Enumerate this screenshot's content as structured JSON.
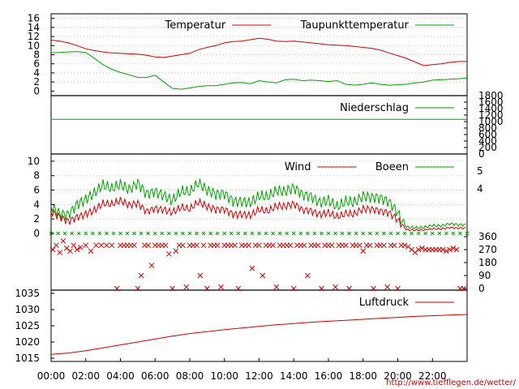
{
  "source_url": "http://www.tiefflegen.de/wetter/",
  "colors": {
    "red": "#cc0000",
    "green": "#00a000",
    "frame": "#000000"
  },
  "chart_data": [
    {
      "type": "line",
      "panel": "temperature",
      "ylim": [
        -1,
        17
      ],
      "yticks": [
        "0",
        "2",
        "4",
        "6",
        "8",
        "10",
        "12",
        "14",
        "16"
      ],
      "grid": true,
      "legend_position": "top-right",
      "x_unit": "hours",
      "series": [
        {
          "name": "Temperatur",
          "color": "#cc0000",
          "x": [
            0,
            0.5,
            1,
            1.5,
            2,
            2.5,
            3,
            3.5,
            4,
            4.5,
            5,
            5.5,
            6,
            6.5,
            7,
            7.5,
            8,
            8.5,
            9,
            9.5,
            10,
            10.5,
            11,
            11.5,
            12,
            12.5,
            13,
            13.5,
            14,
            14.5,
            15,
            15.5,
            16,
            16.5,
            17,
            17.5,
            18,
            18.5,
            19,
            19.5,
            20,
            20.5,
            21,
            21.5,
            22,
            22.5,
            23,
            23.5,
            24
          ],
          "values": [
            11.2,
            11.0,
            10.6,
            10.0,
            9.3,
            8.9,
            8.6,
            8.4,
            8.3,
            8.2,
            8.1,
            7.9,
            7.5,
            7.4,
            7.7,
            8.0,
            8.3,
            9.1,
            9.6,
            10.0,
            10.6,
            10.9,
            11.0,
            11.3,
            11.6,
            11.4,
            11.0,
            10.9,
            11.0,
            10.8,
            10.6,
            10.4,
            10.2,
            10.1,
            10.0,
            9.8,
            9.6,
            9.4,
            9.0,
            8.4,
            7.8,
            7.2,
            6.4,
            5.6,
            5.8,
            6.0,
            6.3,
            6.5,
            6.5
          ]
        },
        {
          "name": "Taupunkttemperatur",
          "color": "#00a000",
          "x": [
            0,
            0.5,
            1,
            1.5,
            2,
            2.5,
            3,
            3.5,
            4,
            4.5,
            5,
            5.5,
            6,
            6.5,
            7,
            7.5,
            8,
            8.5,
            9,
            9.5,
            10,
            10.5,
            11,
            11.5,
            12,
            12.5,
            13,
            13.5,
            14,
            14.5,
            15,
            15.5,
            16,
            16.5,
            17,
            17.5,
            18,
            18.5,
            19,
            19.5,
            20,
            20.5,
            21,
            21.5,
            22,
            22.5,
            23,
            23.5,
            24
          ],
          "values": [
            8.4,
            8.5,
            8.6,
            8.7,
            8.5,
            7.2,
            5.8,
            4.8,
            4.1,
            3.6,
            3.0,
            3.0,
            3.5,
            2.0,
            0.6,
            0.4,
            0.7,
            1.0,
            1.2,
            1.2,
            1.5,
            1.8,
            1.9,
            1.6,
            2.3,
            2.0,
            1.8,
            2.5,
            2.6,
            2.3,
            2.4,
            2.3,
            2.1,
            2.3,
            1.5,
            1.3,
            1.5,
            1.8,
            1.5,
            1.3,
            1.4,
            1.5,
            1.8,
            2.0,
            2.4,
            2.5,
            2.6,
            2.7,
            2.9
          ]
        }
      ]
    },
    {
      "type": "line",
      "panel": "precipitation",
      "ylim": [
        0,
        1800
      ],
      "yticks_right": [
        "0",
        "200",
        "400",
        "600",
        "800",
        "1000",
        "1200",
        "1400",
        "1600",
        "1800"
      ],
      "legend_position": "top-right",
      "series": [
        {
          "name": "Niederschlag",
          "color": "#00a000",
          "x": [
            0,
            24
          ],
          "values": [
            1070,
            1070
          ]
        }
      ]
    },
    {
      "type": "line",
      "panel": "wind",
      "ylim": [
        0,
        11
      ],
      "yticks": [
        "0",
        "2",
        "4",
        "6",
        "8",
        "10"
      ],
      "yticks_right": [
        "4",
        "5"
      ],
      "grid": true,
      "legend_position": "top-right",
      "series": [
        {
          "name": "Wind",
          "color": "#cc0000",
          "x": [
            0,
            0.5,
            1,
            1.5,
            2,
            2.5,
            3,
            3.5,
            4,
            4.5,
            5,
            5.5,
            6,
            6.5,
            7,
            7.5,
            8,
            8.5,
            9,
            9.5,
            10,
            10.5,
            11,
            11.5,
            12,
            12.5,
            13,
            13.5,
            14,
            14.5,
            15,
            15.5,
            16,
            16.5,
            17,
            17.5,
            18,
            18.5,
            19,
            19.5,
            20,
            20.5,
            21,
            21.5,
            22,
            22.5,
            23,
            23.5,
            24
          ],
          "values": [
            3.0,
            2.6,
            2.2,
            2.8,
            3.0,
            3.2,
            3.8,
            3.5,
            4.0,
            3.6,
            4.2,
            3.4,
            4.0,
            3.8,
            3.2,
            3.6,
            3.0,
            3.8,
            3.2,
            3.0,
            3.4,
            3.0,
            3.2,
            3.0,
            3.6,
            3.0,
            3.4,
            3.2,
            3.6,
            3.0,
            3.2,
            3.0,
            3.4,
            2.8,
            3.0,
            2.6,
            3.0,
            2.8,
            2.6,
            2.6,
            2.0,
            0.6,
            0.6,
            0.6,
            0.7,
            0.6,
            0.7,
            0.6,
            0.6
          ]
        },
        {
          "name": "Boeen",
          "color": "#00a000",
          "x": [
            0,
            0.5,
            1,
            1.5,
            2,
            2.5,
            3,
            3.5,
            4,
            4.5,
            5,
            5.5,
            6,
            6.5,
            7,
            7.5,
            8,
            8.5,
            9,
            9.5,
            10,
            10.5,
            11,
            11.5,
            12,
            12.5,
            13,
            13.5,
            14,
            14.5,
            15,
            15.5,
            16,
            16.5,
            17,
            17.5,
            18,
            18.5,
            19,
            19.5,
            20,
            20.5,
            21,
            21.5,
            22,
            22.5,
            23,
            23.5,
            24
          ],
          "values": [
            3.8,
            3.2,
            3.4,
            4.8,
            5.2,
            5.6,
            6.2,
            5.4,
            6.0,
            5.6,
            7.0,
            6.0,
            6.6,
            6.0,
            5.0,
            5.8,
            5.2,
            6.2,
            5.2,
            5.0,
            5.6,
            5.0,
            5.2,
            5.0,
            5.6,
            5.0,
            5.4,
            5.0,
            5.6,
            5.0,
            5.2,
            4.8,
            5.4,
            4.4,
            4.8,
            4.2,
            4.6,
            4.2,
            4.2,
            4.0,
            3.0,
            1.0,
            1.0,
            1.0,
            1.2,
            1.0,
            1.2,
            1.0,
            1.0
          ]
        }
      ]
    },
    {
      "type": "scatter",
      "panel": "wind_direction",
      "ylim": [
        0,
        360
      ],
      "yticks_right": [
        "0",
        "90",
        "180",
        "270",
        "360"
      ],
      "marker": "x",
      "color": "#cc0000",
      "points": [
        [
          0.1,
          270
        ],
        [
          0.3,
          300
        ],
        [
          0.5,
          250
        ],
        [
          0.7,
          330
        ],
        [
          0.9,
          280
        ],
        [
          1.1,
          260
        ],
        [
          1.3,
          300
        ],
        [
          1.5,
          270
        ],
        [
          1.7,
          285
        ],
        [
          2.0,
          300
        ],
        [
          2.3,
          260
        ],
        [
          2.6,
          300
        ],
        [
          2.9,
          300
        ],
        [
          3.2,
          300
        ],
        [
          3.5,
          300
        ],
        [
          3.8,
          0
        ],
        [
          4.0,
          300
        ],
        [
          4.2,
          300
        ],
        [
          4.4,
          300
        ],
        [
          4.6,
          300
        ],
        [
          4.8,
          300
        ],
        [
          5.0,
          0
        ],
        [
          5.2,
          90
        ],
        [
          5.4,
          300
        ],
        [
          5.6,
          300
        ],
        [
          5.8,
          160
        ],
        [
          6.0,
          300
        ],
        [
          6.2,
          300
        ],
        [
          6.4,
          300
        ],
        [
          6.6,
          300
        ],
        [
          6.8,
          240
        ],
        [
          7.0,
          0
        ],
        [
          7.2,
          260
        ],
        [
          7.4,
          300
        ],
        [
          7.6,
          300
        ],
        [
          7.8,
          10
        ],
        [
          8.0,
          300
        ],
        [
          8.2,
          300
        ],
        [
          8.4,
          300
        ],
        [
          8.6,
          90
        ],
        [
          8.8,
          300
        ],
        [
          9.0,
          0
        ],
        [
          9.2,
          300
        ],
        [
          9.4,
          300
        ],
        [
          9.6,
          300
        ],
        [
          9.8,
          10
        ],
        [
          10.0,
          300
        ],
        [
          10.2,
          300
        ],
        [
          10.4,
          300
        ],
        [
          10.6,
          300
        ],
        [
          10.8,
          0
        ],
        [
          11.0,
          300
        ],
        [
          11.2,
          300
        ],
        [
          11.4,
          300
        ],
        [
          11.6,
          140
        ],
        [
          11.8,
          300
        ],
        [
          12.0,
          300
        ],
        [
          12.2,
          90
        ],
        [
          12.4,
          300
        ],
        [
          12.6,
          300
        ],
        [
          12.8,
          300
        ],
        [
          13.0,
          10
        ],
        [
          13.2,
          300
        ],
        [
          13.4,
          300
        ],
        [
          13.6,
          300
        ],
        [
          13.8,
          300
        ],
        [
          14.0,
          0
        ],
        [
          14.2,
          300
        ],
        [
          14.4,
          300
        ],
        [
          14.6,
          300
        ],
        [
          14.8,
          90
        ],
        [
          15.0,
          300
        ],
        [
          15.2,
          300
        ],
        [
          15.4,
          300
        ],
        [
          15.6,
          0
        ],
        [
          15.8,
          300
        ],
        [
          16.0,
          300
        ],
        [
          16.2,
          300
        ],
        [
          16.4,
          10
        ],
        [
          16.6,
          300
        ],
        [
          16.8,
          300
        ],
        [
          17.0,
          300
        ],
        [
          17.2,
          0
        ],
        [
          17.4,
          300
        ],
        [
          17.6,
          300
        ],
        [
          17.8,
          300
        ],
        [
          18.0,
          260
        ],
        [
          18.2,
          300
        ],
        [
          18.4,
          300
        ],
        [
          18.6,
          0
        ],
        [
          18.8,
          300
        ],
        [
          19.0,
          300
        ],
        [
          19.2,
          300
        ],
        [
          19.4,
          10
        ],
        [
          19.6,
          300
        ],
        [
          19.8,
          300
        ],
        [
          20.0,
          0
        ],
        [
          20.2,
          300
        ],
        [
          20.4,
          300
        ],
        [
          20.6,
          290
        ],
        [
          20.8,
          270
        ],
        [
          21.0,
          250
        ],
        [
          21.2,
          270
        ],
        [
          21.4,
          280
        ],
        [
          21.6,
          270
        ],
        [
          21.8,
          270
        ],
        [
          22.0,
          270
        ],
        [
          22.2,
          270
        ],
        [
          22.4,
          270
        ],
        [
          22.6,
          270
        ],
        [
          22.8,
          260
        ],
        [
          23.0,
          270
        ],
        [
          23.2,
          280
        ],
        [
          23.4,
          270
        ],
        [
          23.6,
          0
        ],
        [
          23.8,
          0
        ]
      ]
    },
    {
      "type": "line",
      "panel": "pressure",
      "ylim": [
        1014,
        1036
      ],
      "yticks": [
        "1015",
        "1020",
        "1025",
        "1030",
        "1035"
      ],
      "legend_position": "top-right",
      "xticks": [
        "00:00",
        "02:00",
        "04:00",
        "06:00",
        "08:00",
        "10:00",
        "12:00",
        "14:00",
        "16:00",
        "18:00",
        "20:00",
        "22:00"
      ],
      "series": [
        {
          "name": "Luftdruck",
          "color": "#cc0000",
          "x": [
            0,
            1,
            2,
            3,
            4,
            5,
            6,
            7,
            8,
            9,
            10,
            11,
            12,
            13,
            14,
            15,
            16,
            17,
            18,
            19,
            20,
            21,
            22,
            23,
            24
          ],
          "values": [
            1016.2,
            1016.6,
            1017.3,
            1018.2,
            1019.1,
            1020.0,
            1020.9,
            1021.8,
            1022.6,
            1023.2,
            1023.8,
            1024.3,
            1024.8,
            1025.3,
            1025.7,
            1026.1,
            1026.4,
            1026.7,
            1027.0,
            1027.3,
            1027.6,
            1027.9,
            1028.1,
            1028.3,
            1028.5
          ]
        }
      ]
    }
  ]
}
